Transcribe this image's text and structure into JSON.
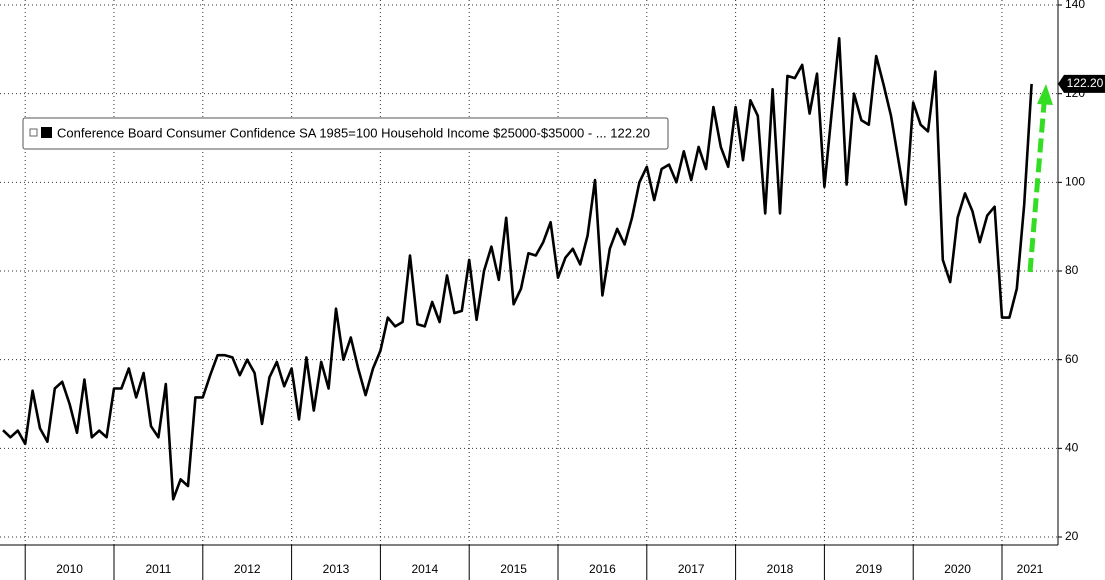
{
  "chart_data": {
    "type": "line",
    "categories": [
      null,
      null,
      null,
      "2010",
      null,
      null,
      null,
      null,
      null,
      null,
      null,
      null,
      null,
      null,
      null,
      "2011",
      null,
      null,
      null,
      null,
      null,
      null,
      null,
      null,
      null,
      null,
      null,
      "2012",
      null,
      null,
      null,
      null,
      null,
      null,
      null,
      null,
      null,
      null,
      null,
      "2013",
      null,
      null,
      null,
      null,
      null,
      null,
      null,
      null,
      null,
      null,
      null,
      "2014",
      null,
      null,
      null,
      null,
      null,
      null,
      null,
      null,
      null,
      null,
      null,
      "2015",
      null,
      null,
      null,
      null,
      null,
      null,
      null,
      null,
      null,
      null,
      null,
      "2016",
      null,
      null,
      null,
      null,
      null,
      null,
      null,
      null,
      null,
      null,
      null,
      "2017",
      null,
      null,
      null,
      null,
      null,
      null,
      null,
      null,
      null,
      null,
      null,
      "2018",
      null,
      null,
      null,
      null,
      null,
      null,
      null,
      null,
      null,
      null,
      null,
      "2019",
      null,
      null,
      null,
      null,
      null,
      null,
      null,
      null,
      null,
      null,
      null,
      "2020",
      null,
      null,
      null,
      null,
      null,
      null,
      null,
      null,
      null,
      null,
      null,
      "2021",
      null,
      null,
      null,
      null
    ],
    "series": [
      {
        "name": "Conference Board Consumer Confidence SA 1985=100 Household Income $25000-$35000 - ... 122.20",
        "color": "#000000",
        "values": [
          44.1,
          42.5,
          44,
          41,
          53,
          44.5,
          41.5,
          53.5,
          55,
          50,
          43.5,
          55.5,
          42.5,
          44,
          42.5,
          53.5,
          53.5,
          58,
          51.5,
          57,
          45,
          42.5,
          54.5,
          28.5,
          33,
          31.5,
          51.5,
          51.5,
          56.5,
          61,
          61,
          60.5,
          56.5,
          60,
          57,
          45.5,
          56,
          59.5,
          54,
          58,
          46.5,
          60.5,
          48.5,
          59.5,
          53.5,
          71.5,
          60,
          65,
          58,
          52,
          58,
          62,
          69.5,
          67.5,
          68.5,
          83.5,
          68,
          67.5,
          73,
          68.5,
          79,
          70.5,
          71,
          82.5,
          69,
          80,
          85.5,
          78,
          92,
          72.5,
          76,
          84,
          83.5,
          86.5,
          91,
          78.5,
          83,
          85,
          81.5,
          88,
          100.5,
          74.5,
          85,
          89.5,
          86,
          92,
          100,
          103.5,
          96,
          103,
          104,
          100,
          107,
          100.5,
          108,
          103,
          117,
          108,
          103.5,
          117,
          105,
          118.5,
          115,
          93,
          121,
          93,
          124,
          123.5,
          126.5,
          115.5,
          124.5,
          99,
          116,
          132.5,
          99.5,
          120,
          114,
          113,
          128.5,
          122,
          115,
          105,
          95,
          118,
          113,
          111.5,
          125,
          82.5,
          77.5,
          92,
          97.5,
          93.5,
          86.5,
          92.5,
          94.5,
          69.5,
          69.5,
          76,
          95,
          122.2
        ],
        "value_labels": [
          null,
          null,
          null,
          null,
          null,
          null,
          null,
          null,
          null,
          null,
          null,
          null,
          null,
          null,
          null,
          null,
          null,
          null,
          null,
          null,
          null,
          null,
          null,
          null,
          null,
          null,
          null,
          null,
          null,
          null,
          null,
          null,
          null,
          null,
          null,
          null,
          null,
          null,
          null,
          null,
          null,
          null,
          null,
          null,
          null,
          null,
          null,
          null,
          null,
          null,
          null,
          null,
          null,
          null,
          null,
          null,
          null,
          null,
          null,
          null,
          null,
          null,
          null,
          null,
          null,
          null,
          null,
          null,
          null,
          null,
          null,
          null,
          null,
          null,
          null,
          null,
          null,
          null,
          null,
          null,
          null,
          null,
          null,
          null,
          null,
          null,
          null,
          null,
          null,
          null,
          null,
          null,
          null,
          null,
          null,
          null,
          null,
          null,
          null,
          null,
          null,
          null,
          null,
          null,
          null,
          null,
          null,
          null,
          null,
          null,
          null,
          null,
          null,
          null,
          null,
          null,
          null,
          null,
          null,
          null,
          null,
          null,
          null,
          null,
          null,
          null,
          null,
          null,
          null,
          null,
          null,
          null,
          null,
          null,
          null,
          null,
          null,
          null,
          null,
          "122.20"
        ]
      }
    ],
    "ylim": [
      20,
      140
    ],
    "yticks": [
      20,
      40,
      60,
      80,
      100,
      120,
      140
    ],
    "grid": true
  }
}
